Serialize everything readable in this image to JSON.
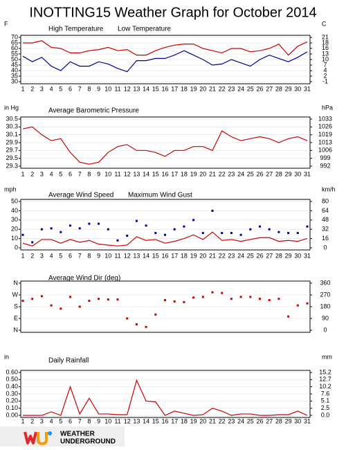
{
  "title": "INOTTING15 Weather Graph for October 2014",
  "logo": [
    "WEATHER",
    "UNDERGROUND"
  ],
  "chart_data": [
    {
      "type": "line",
      "y_label": "F",
      "y2_label": "C",
      "categories": [
        "1",
        "2",
        "3",
        "4",
        "5",
        "6",
        "7",
        "8",
        "9",
        "10",
        "11",
        "12",
        "13",
        "14",
        "15",
        "16",
        "17",
        "18",
        "19",
        "20",
        "21",
        "22",
        "23",
        "24",
        "25",
        "26",
        "27",
        "28",
        "29",
        "30",
        "31"
      ],
      "series": [
        {
          "name": "High Temperature",
          "color": "#cc0000",
          "values": [
            65,
            65,
            67,
            61,
            60,
            56,
            56,
            58,
            59,
            61,
            58,
            59,
            54,
            54,
            58,
            61,
            63,
            64,
            64,
            60,
            58,
            56,
            60,
            60,
            57,
            58,
            60,
            64,
            54,
            62,
            66
          ]
        },
        {
          "name": "Low Temperature",
          "color": "#000099",
          "values": [
            53,
            48,
            52,
            44,
            40,
            48,
            44,
            44,
            48,
            46,
            42,
            39,
            49,
            49,
            51,
            51,
            54,
            58,
            54,
            50,
            45,
            46,
            50,
            47,
            44,
            50,
            54,
            51,
            48,
            52,
            57
          ]
        }
      ],
      "ylim": [
        30,
        70
      ],
      "yticks": [
        70,
        65,
        60,
        55,
        50,
        45,
        40,
        35,
        30
      ],
      "y2lim": [
        -1.1,
        21.1
      ],
      "y2ticks": [
        {
          "value": 21.1,
          "label": "21"
        },
        {
          "value": 18.3,
          "label": "18"
        },
        {
          "value": 15.6,
          "label": "16"
        },
        {
          "value": 12.8,
          "label": "13"
        },
        {
          "value": 10,
          "label": "10"
        },
        {
          "value": 7.2,
          "label": "7"
        },
        {
          "value": 4.4,
          "label": "4"
        },
        {
          "value": 1.7,
          "label": "2"
        },
        {
          "value": -1.1,
          "label": "-1"
        }
      ],
      "grid": true
    },
    {
      "type": "line",
      "y_label": "in Hg",
      "y2_label": "hPa",
      "categories": [
        "1",
        "2",
        "3",
        "4",
        "5",
        "6",
        "7",
        "8",
        "9",
        "10",
        "11",
        "12",
        "13",
        "14",
        "15",
        "16",
        "17",
        "18",
        "19",
        "20",
        "21",
        "22",
        "23",
        "24",
        "25",
        "26",
        "27",
        "28",
        "29",
        "30",
        "31"
      ],
      "series": [
        {
          "name": "Average Barometric Pressure",
          "color": "#cc0000",
          "values": [
            30.25,
            30.3,
            30.1,
            29.95,
            30.0,
            29.65,
            29.4,
            29.35,
            29.4,
            29.65,
            29.8,
            29.85,
            29.7,
            29.7,
            29.65,
            29.55,
            29.7,
            29.7,
            29.8,
            29.8,
            29.7,
            30.2,
            30.05,
            29.95,
            30.0,
            30.05,
            30.0,
            29.9,
            30.0,
            30.05,
            29.95
          ]
        }
      ],
      "ylim": [
        29.3,
        30.5
      ],
      "yticks": [
        30.5,
        30.3,
        30.1,
        29.9,
        29.7,
        29.5,
        29.3
      ],
      "y2lim": [
        992.2,
        1032.9
      ],
      "y2ticks": [
        {
          "value": 1032.9,
          "label": "1033"
        },
        {
          "value": 1026.1,
          "label": "1026"
        },
        {
          "value": 1019.3,
          "label": "1019"
        },
        {
          "value": 1012.6,
          "label": "1013"
        },
        {
          "value": 1005.8,
          "label": "1006"
        },
        {
          "value": 999.0,
          "label": "999"
        },
        {
          "value": 992.2,
          "label": "992"
        }
      ],
      "grid": true
    },
    {
      "type": "line",
      "y_label": "mph",
      "y2_label": "km/h",
      "categories": [
        "1",
        "2",
        "3",
        "4",
        "5",
        "6",
        "7",
        "8",
        "9",
        "10",
        "11",
        "12",
        "13",
        "14",
        "15",
        "16",
        "17",
        "18",
        "19",
        "20",
        "21",
        "22",
        "23",
        "24",
        "25",
        "26",
        "27",
        "28",
        "29",
        "30",
        "31"
      ],
      "series": [
        {
          "name": "Average Wind Speed",
          "color": "#cc0000",
          "values": [
            5,
            2,
            9,
            9,
            5,
            9,
            6,
            8,
            4,
            3,
            2,
            3,
            12,
            8,
            9,
            5,
            7,
            10,
            14,
            9,
            17,
            8,
            9,
            7,
            9,
            11,
            11,
            7,
            8,
            7,
            10
          ]
        },
        {
          "name": "Maximum Wind Gust",
          "color": "#000099",
          "style": "markers",
          "values": [
            14,
            6,
            20,
            21,
            17,
            24,
            21,
            26,
            26,
            20,
            8,
            13,
            29,
            24,
            16,
            14,
            20,
            23,
            30,
            16,
            40,
            16,
            16,
            14,
            20,
            23,
            20,
            17,
            16,
            16,
            23
          ]
        }
      ],
      "ylim": [
        0,
        50
      ],
      "yticks": [
        50,
        40,
        30,
        20,
        10,
        0
      ],
      "y2lim": [
        0,
        80.5
      ],
      "y2ticks": [
        {
          "value": 80.5,
          "label": "80"
        },
        {
          "value": 64.4,
          "label": "64"
        },
        {
          "value": 48.3,
          "label": "48"
        },
        {
          "value": 32.2,
          "label": "32"
        },
        {
          "value": 16.1,
          "label": "16"
        },
        0
      ],
      "grid": true
    },
    {
      "type": "scatter",
      "x": [
        1,
        2,
        3,
        4,
        5,
        6,
        7,
        8,
        9,
        10,
        11,
        12,
        13,
        14,
        15,
        16,
        17,
        18,
        19,
        20,
        21,
        22,
        23,
        24,
        25,
        26,
        27,
        28,
        29,
        30,
        31
      ],
      "xlim": [
        1,
        31
      ],
      "series": [
        {
          "name": "Average Wind Dir (deg)",
          "color": "#cc0000",
          "values": [
            225,
            240,
            260,
            190,
            165,
            255,
            180,
            225,
            240,
            235,
            235,
            90,
            45,
            25,
            120,
            230,
            220,
            215,
            250,
            255,
            290,
            285,
            240,
            255,
            255,
            240,
            230,
            240,
            105,
            190,
            205
          ]
        }
      ],
      "ylim": [
        0,
        360
      ],
      "yticks": [
        {
          "value": 360,
          "label": "N"
        },
        {
          "value": 270,
          "label": "W"
        },
        {
          "value": 180,
          "label": "S"
        },
        {
          "value": 90,
          "label": "E"
        },
        {
          "value": 0,
          "label": "N"
        }
      ],
      "ytick_color": "#cc0000",
      "y2lim": [
        0,
        360
      ],
      "y2ticks": [
        360,
        270,
        180,
        90,
        0
      ],
      "grid": true
    },
    {
      "type": "line",
      "y_label": "in",
      "y2_label": "mm",
      "categories": [
        "1",
        "2",
        "3",
        "4",
        "5",
        "6",
        "7",
        "8",
        "9",
        "10",
        "11",
        "12",
        "13",
        "14",
        "15",
        "16",
        "17",
        "18",
        "19",
        "20",
        "21",
        "22",
        "23",
        "24",
        "25",
        "26",
        "27",
        "28",
        "29",
        "30",
        "31"
      ],
      "series": [
        {
          "name": "Daily Rainfall",
          "color": "#cc0000",
          "values": [
            0,
            0,
            0,
            0.05,
            0,
            0.4,
            0.02,
            0.24,
            0.02,
            0.02,
            0.01,
            0.01,
            0.49,
            0.2,
            0.19,
            0,
            0.06,
            0.03,
            0,
            0.01,
            0.1,
            0.06,
            0,
            0.02,
            0.02,
            0,
            0,
            0.01,
            0.01,
            0.06,
            0
          ]
        }
      ],
      "ylim": [
        0,
        0.6
      ],
      "yticks": [
        {
          "value": 0.6,
          "label": "0.60"
        },
        {
          "value": 0.5,
          "label": "0.50"
        },
        {
          "value": 0.4,
          "label": "0.40"
        },
        {
          "value": 0.3,
          "label": "0.30"
        },
        {
          "value": 0.2,
          "label": "0.20"
        },
        {
          "value": 0.1,
          "label": "0.10"
        },
        {
          "value": 0,
          "label": "0.00"
        }
      ],
      "y2lim": [
        0,
        15.24
      ],
      "y2ticks": [
        {
          "value": 15.24,
          "label": "15.2"
        },
        {
          "value": 12.7,
          "label": "12.7"
        },
        {
          "value": 10.16,
          "label": "10.2"
        },
        {
          "value": 7.62,
          "label": "7.6"
        },
        {
          "value": 5.08,
          "label": "5.1"
        },
        {
          "value": 2.54,
          "label": "2.5"
        },
        {
          "value": 0,
          "label": "0.0"
        }
      ],
      "grid": true
    }
  ]
}
